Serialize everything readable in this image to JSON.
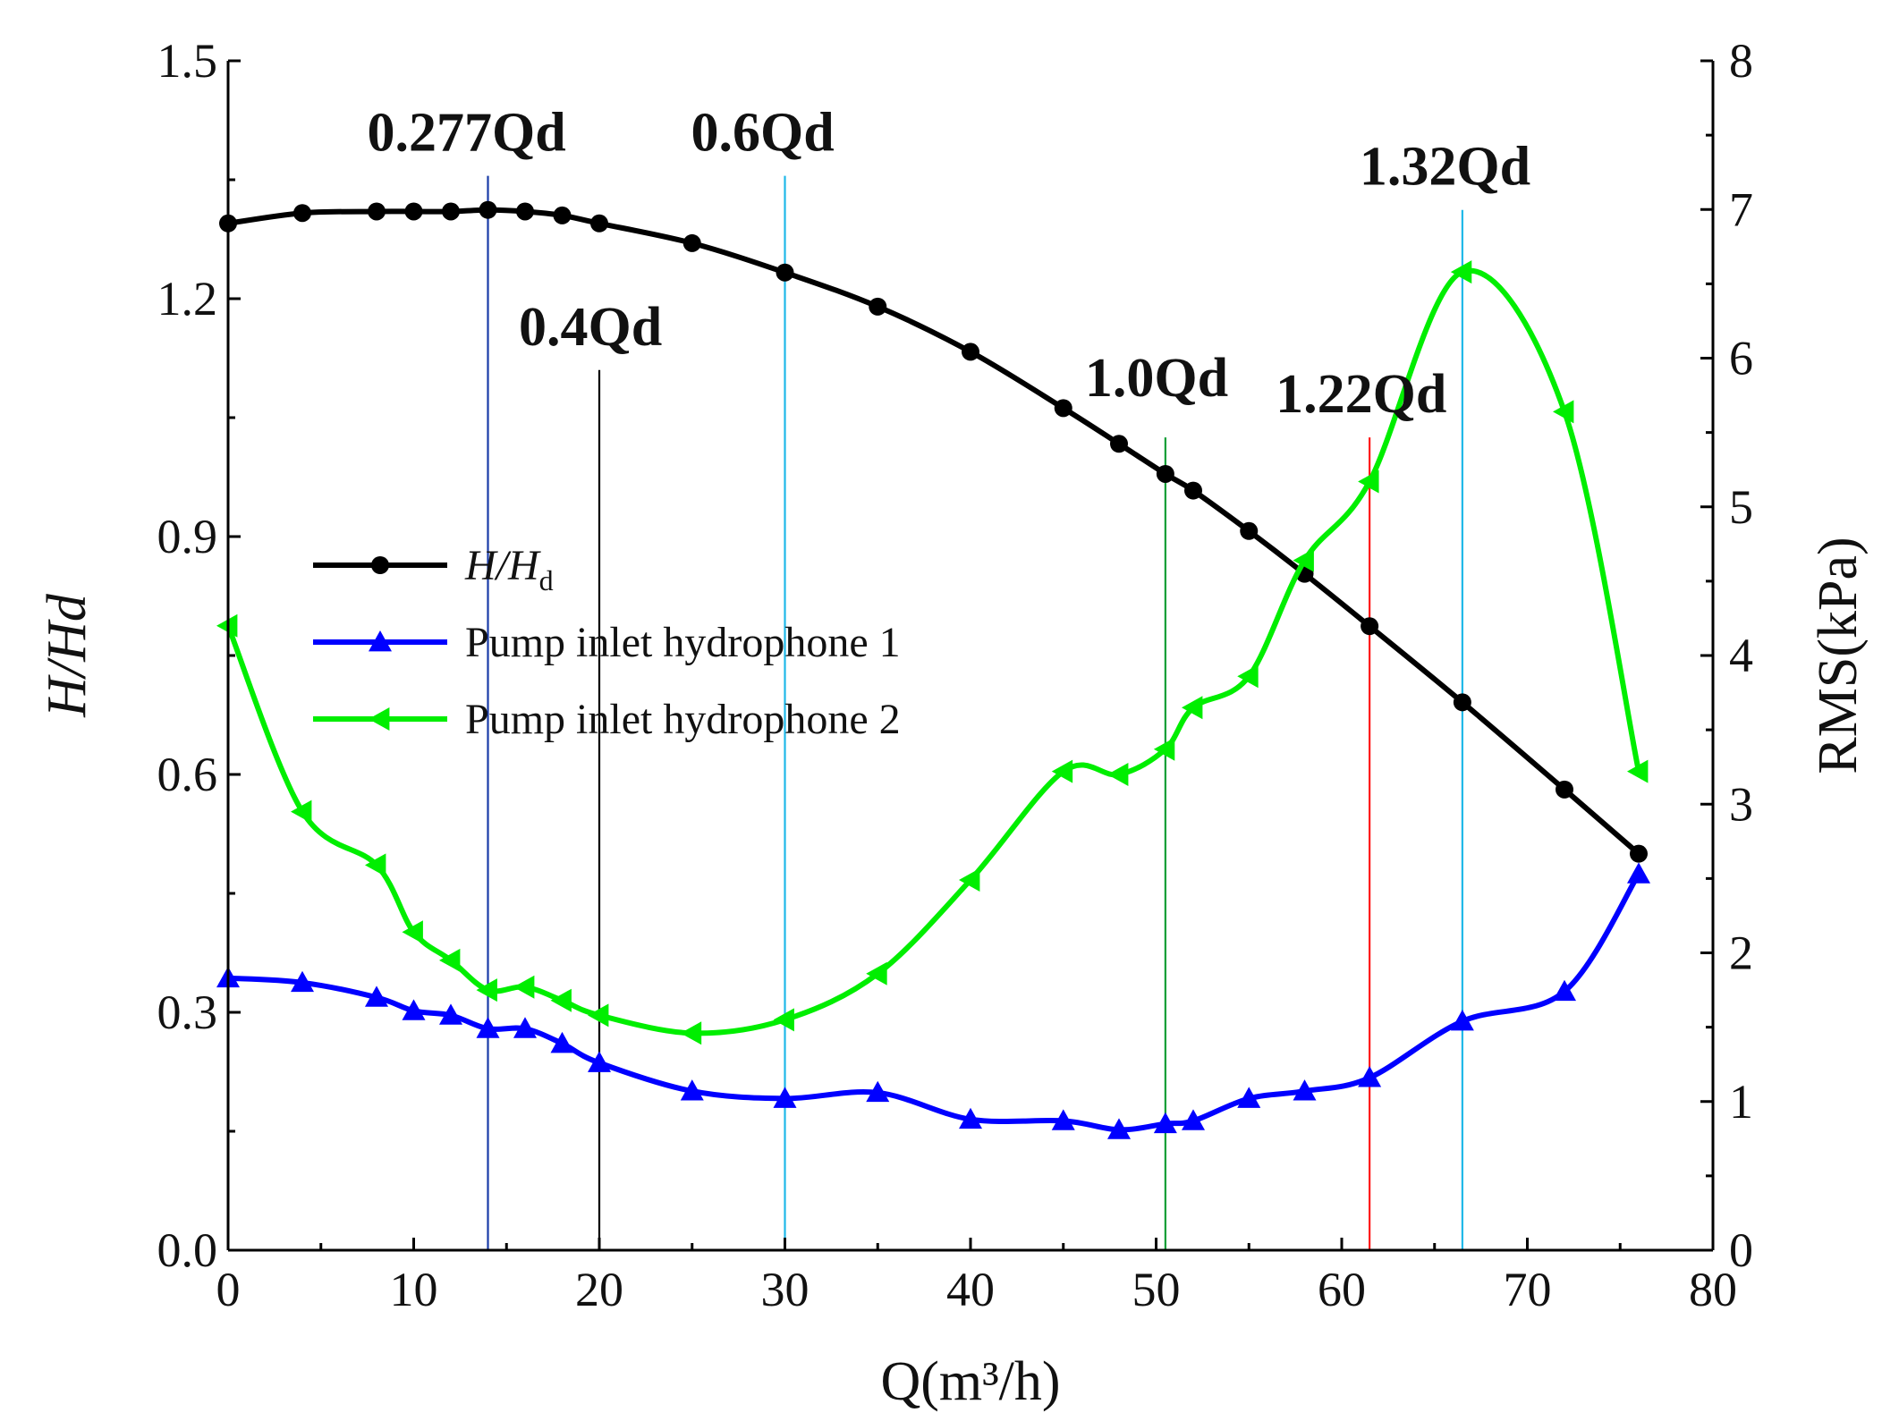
{
  "chart_data": {
    "type": "line",
    "xlabel": "Q(m³/h)",
    "ylabel_left": "H/Hd",
    "ylabel_right": "RMS(kPa)",
    "xlim": [
      0,
      80
    ],
    "ylim_left": [
      0,
      1.5
    ],
    "ylim_right": [
      0,
      8
    ],
    "x_ticks": [
      "0",
      "10",
      "20",
      "30",
      "40",
      "50",
      "60",
      "70",
      "80"
    ],
    "y_left_ticks": [
      "0.0",
      "0.3",
      "0.6",
      "0.9",
      "1.2",
      "1.5"
    ],
    "y_right_ticks": [
      "0",
      "1",
      "2",
      "3",
      "4",
      "5",
      "6",
      "7",
      "8"
    ],
    "legend": {
      "placement": "left-middle"
    },
    "colors": {
      "head": "#000000",
      "hydrophone1": "#0000ff",
      "hydrophone2": "#00ee00"
    },
    "series": [
      {
        "name": "H/Hd",
        "legend_main": "H/H",
        "legend_sub": "d",
        "axis": "left",
        "marker": "circle",
        "color": "#000000",
        "x": [
          0,
          4,
          8,
          10,
          12,
          14,
          16,
          18,
          20,
          25,
          30,
          35,
          40,
          45,
          48,
          50.5,
          52,
          55,
          58,
          61.5,
          66.5,
          72,
          76
        ],
        "values": [
          1.295,
          1.308,
          1.31,
          1.31,
          1.31,
          1.312,
          1.31,
          1.305,
          1.295,
          1.27,
          1.233,
          1.19,
          1.133,
          1.062,
          1.017,
          0.979,
          0.958,
          0.907,
          0.853,
          0.787,
          0.691,
          0.581,
          0.5
        ]
      },
      {
        "name": "Pump inlet hydrophone 1",
        "axis": "right",
        "marker": "triangle-up",
        "color": "#0000ff",
        "x": [
          0,
          4,
          8,
          10,
          12,
          14,
          16,
          18,
          20,
          25,
          30,
          35,
          40,
          45,
          48,
          50.5,
          52,
          55,
          58,
          61.5,
          66.5,
          72,
          76
        ],
        "values": [
          1.83,
          1.8,
          1.7,
          1.61,
          1.58,
          1.49,
          1.49,
          1.39,
          1.26,
          1.07,
          1.02,
          1.06,
          0.88,
          0.87,
          0.81,
          0.85,
          0.87,
          1.02,
          1.07,
          1.16,
          1.54,
          1.74,
          2.53
        ]
      },
      {
        "name": "Pump inlet hydrophone 2",
        "axis": "right",
        "marker": "triangle-left",
        "color": "#00ee00",
        "x": [
          0,
          4,
          8,
          10,
          12,
          14,
          16,
          18,
          20,
          25,
          30,
          35,
          40,
          45,
          48,
          50.5,
          52,
          55,
          58,
          61.5,
          66.5,
          72,
          76
        ],
        "values": [
          4.2,
          2.95,
          2.59,
          2.14,
          1.95,
          1.75,
          1.77,
          1.68,
          1.58,
          1.46,
          1.55,
          1.86,
          2.49,
          3.22,
          3.2,
          3.37,
          3.65,
          3.86,
          4.64,
          5.17,
          6.58,
          5.64,
          3.22
        ]
      }
    ],
    "vertical_lines": [
      {
        "label": "0.277Qd",
        "x": 14,
        "color": "#1a3ca8",
        "top_value": 1.355
      },
      {
        "label": "0.4Qd",
        "x": 20,
        "color": "#000000",
        "top_value": 1.11
      },
      {
        "label": "0.6Qd",
        "x": 30,
        "color": "#1fb8e8",
        "top_value": 1.355
      },
      {
        "label": "1.0Qd",
        "x": 50.5,
        "color": "#0f9e36",
        "top_value": 1.025
      },
      {
        "label": "1.22Qd",
        "x": 61.5,
        "color": "#ff1a1a",
        "top_value": 1.025
      },
      {
        "label": "1.32Qd",
        "x": 66.5,
        "color": "#1fb8e8",
        "top_value": 1.312
      }
    ]
  }
}
